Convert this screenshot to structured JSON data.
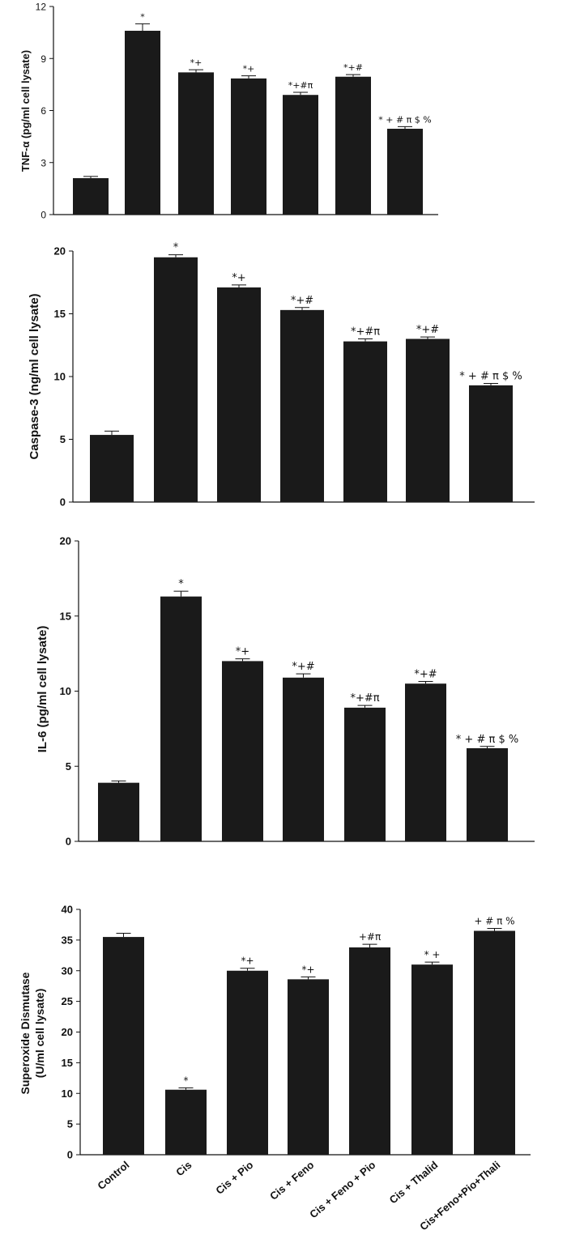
{
  "chart_data": [
    {
      "type": "bar",
      "ylabel": "TNF-α (pg/ml cell lysate)",
      "ylim": [
        0,
        12
      ],
      "yticks": [
        0,
        3,
        6,
        9,
        12
      ],
      "categories": [
        "Control",
        "Cis",
        "Cis + Pio",
        "Cis + Feno",
        "Cis + Feno + Pio",
        "Cis + Thalid",
        "Cis+Feno+Pio+Thali"
      ],
      "values": [
        2.1,
        10.6,
        8.2,
        7.85,
        6.9,
        7.95,
        4.95
      ],
      "errors": [
        0.1,
        0.4,
        0.15,
        0.15,
        0.15,
        0.12,
        0.12
      ],
      "annotations": [
        "",
        "*",
        "*+",
        "*+",
        "*+#π",
        "*+#",
        "* + # π $ %"
      ]
    },
    {
      "type": "bar",
      "ylabel": "Caspase-3 (ng/ml cell lysate)",
      "ylim": [
        0,
        20
      ],
      "yticks": [
        0,
        5,
        10,
        15,
        20
      ],
      "categories": [
        "Control",
        "Cis",
        "Cis + Pio",
        "Cis + Feno",
        "Cis + Feno + Pio",
        "Cis + Thalid",
        "Cis+Feno+Pio+Thali"
      ],
      "values": [
        5.35,
        19.5,
        17.1,
        15.3,
        12.8,
        13.0,
        9.3
      ],
      "errors": [
        0.3,
        0.2,
        0.2,
        0.2,
        0.2,
        0.15,
        0.15
      ],
      "annotations": [
        "",
        "*",
        "*+",
        "*+#",
        "*+#π",
        "*+#",
        "* + # π $ %"
      ]
    },
    {
      "type": "bar",
      "ylabel": "IL-6 (pg/ml cell lysate)",
      "ylim": [
        0,
        20
      ],
      "yticks": [
        0,
        5,
        10,
        15,
        20
      ],
      "categories": [
        "Control",
        "Cis",
        "Cis + Pio",
        "Cis + Feno",
        "Cis + Feno + Pio",
        "Cis + Thalid",
        "Cis+Feno+Pio+Thali"
      ],
      "values": [
        3.9,
        16.3,
        12.0,
        10.9,
        8.9,
        10.5,
        6.2
      ],
      "errors": [
        0.12,
        0.35,
        0.15,
        0.25,
        0.15,
        0.15,
        0.12
      ],
      "annotations": [
        "",
        "*",
        "*+",
        "*+#",
        "*+#π",
        "*+#",
        "* + # π $ %"
      ]
    },
    {
      "type": "bar",
      "ylabel": "Superoxide Dismutase (U/ml cell lysate)",
      "ylabel_lines": [
        "Superoxide Dismutase",
        "(U/ml cell lysate)"
      ],
      "ylim": [
        0,
        40
      ],
      "yticks": [
        0,
        5,
        10,
        15,
        20,
        25,
        30,
        35,
        40
      ],
      "categories": [
        "Control",
        "Cis",
        "Cis + Pio",
        "Cis + Feno",
        "Cis + Feno + Pio",
        "Cis + Thalid",
        "Cis+Feno+Pio+Thali"
      ],
      "values": [
        35.5,
        10.6,
        30.0,
        28.6,
        33.8,
        31.0,
        36.5
      ],
      "errors": [
        0.6,
        0.3,
        0.4,
        0.4,
        0.5,
        0.4,
        0.4
      ],
      "annotations": [
        "",
        "*",
        "*+",
        "*+",
        "+#π",
        "* +",
        "+ # π %"
      ]
    }
  ],
  "colors": {
    "bar": "#1a1a1a",
    "axis": "#111111"
  }
}
